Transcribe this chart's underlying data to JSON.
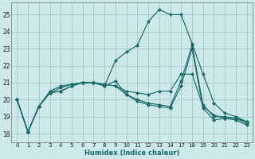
{
  "xlabel": "Humidex (Indice chaleur)",
  "background_color": "#cce8e8",
  "grid_color": "#aacccc",
  "line_color": "#1a6b6b",
  "ylim": [
    17.5,
    25.7
  ],
  "yticks": [
    18,
    19,
    20,
    21,
    22,
    23,
    24,
    25
  ],
  "xtick_labels": [
    "0",
    "1",
    "2",
    "3",
    "4",
    "5",
    "6",
    "7",
    "8",
    "9",
    "10",
    "11",
    "12",
    "13",
    "14",
    "17",
    "18",
    "19",
    "20",
    "21",
    "22",
    "23"
  ],
  "series": [
    {
      "y": [
        20.0,
        18.1,
        19.6,
        20.5,
        20.8,
        20.9,
        21.0,
        21.0,
        20.9,
        20.8,
        20.5,
        20.4,
        20.3,
        20.5,
        20.5,
        21.5,
        21.5,
        19.6,
        19.1,
        18.9,
        18.9,
        18.7
      ]
    },
    {
      "y": [
        20.0,
        18.1,
        19.6,
        20.4,
        20.7,
        20.9,
        21.0,
        21.0,
        20.9,
        20.8,
        20.3,
        20.0,
        19.8,
        19.7,
        19.6,
        21.1,
        23.2,
        19.7,
        19.0,
        19.0,
        18.9,
        18.6
      ]
    },
    {
      "y": [
        20.0,
        18.1,
        19.6,
        20.4,
        20.5,
        20.8,
        21.0,
        21.0,
        20.8,
        21.1,
        20.3,
        19.9,
        19.7,
        19.6,
        19.5,
        20.8,
        23.0,
        19.5,
        18.8,
        18.9,
        18.8,
        18.5
      ]
    },
    {
      "y": [
        20.0,
        18.1,
        19.6,
        20.4,
        20.5,
        20.8,
        21.0,
        21.0,
        20.8,
        22.3,
        22.8,
        23.2,
        24.6,
        25.3,
        25.0,
        25.0,
        23.3,
        21.5,
        19.8,
        19.2,
        19.0,
        18.7
      ]
    }
  ]
}
